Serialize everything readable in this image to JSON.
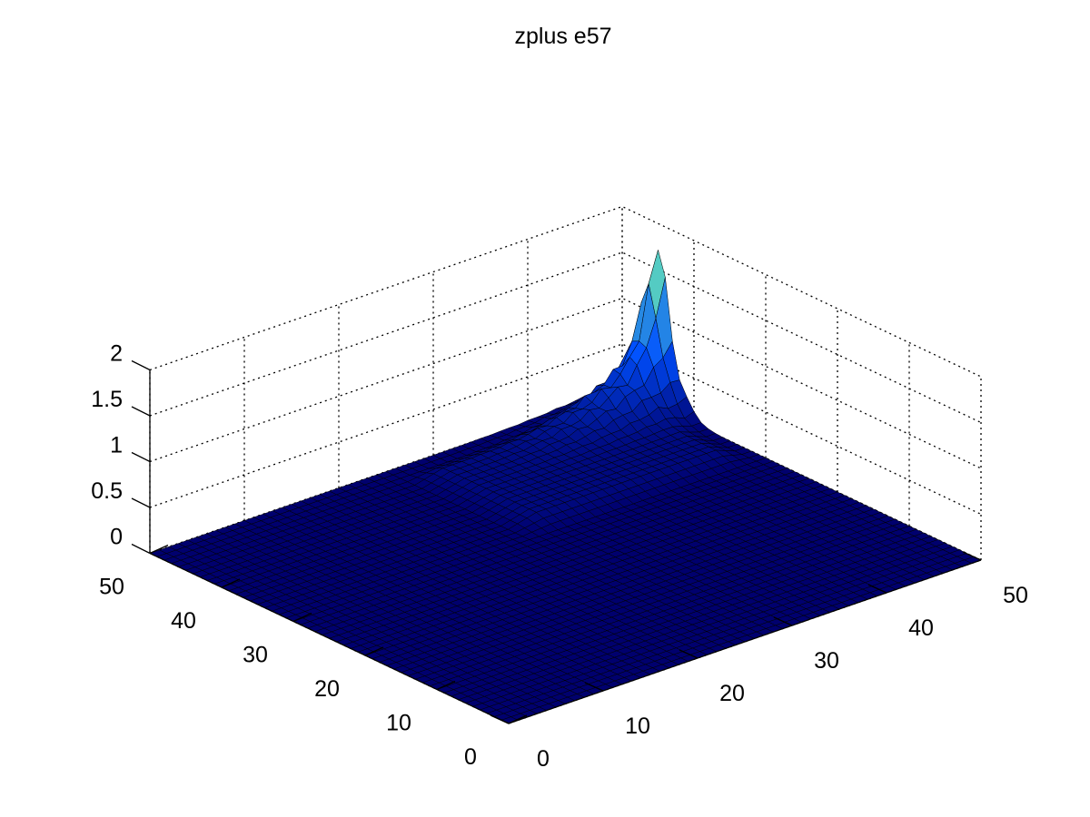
{
  "chart_data": {
    "type": "surface",
    "title": "zplus e57",
    "xlabel": "",
    "ylabel": "",
    "zlabel": "",
    "grid": true,
    "xlim": [
      0,
      50
    ],
    "ylim": [
      0,
      50
    ],
    "zlim": [
      0,
      2
    ],
    "x_ticks": [
      "0",
      "10",
      "20",
      "30",
      "40",
      "50"
    ],
    "y_ticks": [
      "0",
      "10",
      "20",
      "30",
      "40",
      "50"
    ],
    "z_ticks": [
      "0",
      "0.5",
      "1",
      "1.5",
      "2"
    ],
    "grid_size": [
      50,
      50
    ],
    "colormap": "winter-like (dark navy to spring green)",
    "colors": {
      "low": "#000080",
      "mid": "#0060ff",
      "high": "#80ffa0"
    },
    "peak": {
      "x": 50,
      "y": 45,
      "z": 1.7
    },
    "surface_description_values": {
      "baseline_z": 0.0,
      "ridge_along_x_at_y": 45,
      "ridge_height_near_peak": [
        0.3,
        0.6,
        0.9,
        1.7
      ],
      "plateau_region_x": [
        25,
        48
      ],
      "plateau_region_y": [
        30,
        47
      ],
      "plateau_height": 0.08
    }
  }
}
